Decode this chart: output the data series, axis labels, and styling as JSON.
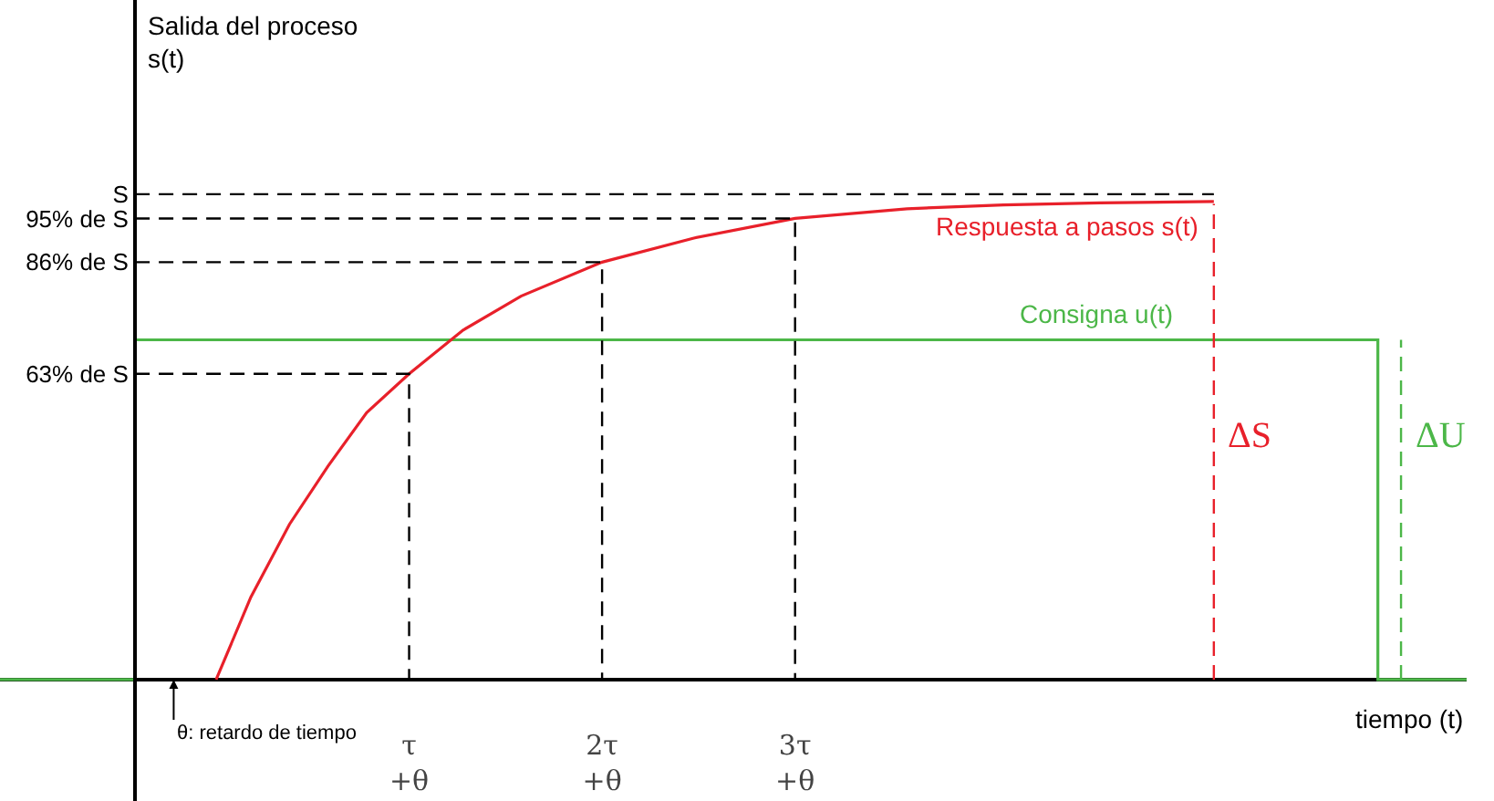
{
  "chart_data": {
    "type": "line",
    "ylabel": "Salida del proceso\ns(t)",
    "xlabel": "tiempo (t)",
    "xlim": [
      -0.7,
      6.9
    ],
    "ylim": [
      -25,
      140
    ],
    "xticks": [
      {
        "value": 1.42,
        "label": "τ\n+θ"
      },
      {
        "value": 2.42,
        "label": "2τ\n+θ"
      },
      {
        "value": 3.42,
        "label": "3τ\n+θ"
      }
    ],
    "yticks": [
      {
        "value": 63,
        "label": "63% de S"
      },
      {
        "value": 86,
        "label": "86% de S"
      },
      {
        "value": 95,
        "label": "95% de S"
      },
      {
        "value": 100,
        "label": "S"
      }
    ],
    "grid": false,
    "legend": false,
    "marker": "none",
    "series": [
      {
        "name": "Consigna u(t)",
        "color": "#4cb748",
        "line_style": "solid",
        "x": [
          -0.7,
          0,
          0,
          6.44,
          6.44,
          6.9
        ],
        "values": [
          0,
          0,
          70,
          70,
          0,
          0
        ]
      },
      {
        "name": "Respuesta a pasos s(t)",
        "color": "#e8202a",
        "line_style": "solid",
        "x": [
          0.42,
          0.6,
          0.8,
          1.0,
          1.2,
          1.42,
          1.7,
          2.0,
          2.42,
          2.9,
          3.42,
          4.0,
          4.5,
          5.0,
          5.59
        ],
        "values": [
          0,
          17,
          32,
          44,
          55,
          63,
          72,
          79,
          86,
          91,
          95,
          97,
          97.8,
          98.2,
          98.5
        ]
      },
      {
        "color": "#000000",
        "line_style": "dashed",
        "x": [
          0,
          5.59
        ],
        "values": [
          100,
          100
        ]
      },
      {
        "color": "#000000",
        "line_style": "dashed",
        "x": [
          0,
          3.42,
          3.42
        ],
        "values": [
          95,
          95,
          0
        ]
      },
      {
        "color": "#000000",
        "line_style": "dashed",
        "x": [
          0,
          2.42,
          2.42
        ],
        "values": [
          86,
          86,
          0
        ]
      },
      {
        "color": "#000000",
        "line_style": "dashed",
        "x": [
          0,
          1.42,
          1.42
        ],
        "values": [
          63,
          63,
          0
        ]
      },
      {
        "color": "#e8202a",
        "line_style": "dashed",
        "x": [
          5.59,
          5.59
        ],
        "values": [
          0,
          98
        ]
      },
      {
        "color": "#4cb748",
        "line_style": "dashed",
        "x": [
          6.56,
          6.56
        ],
        "values": [
          0,
          70
        ]
      }
    ],
    "annotations": [
      {
        "text": "ΔS",
        "x": 5.59,
        "y": 50
      },
      {
        "text": "ΔU",
        "x": 6.56,
        "y": 50
      },
      "θ: retardo de tiempo"
    ]
  }
}
